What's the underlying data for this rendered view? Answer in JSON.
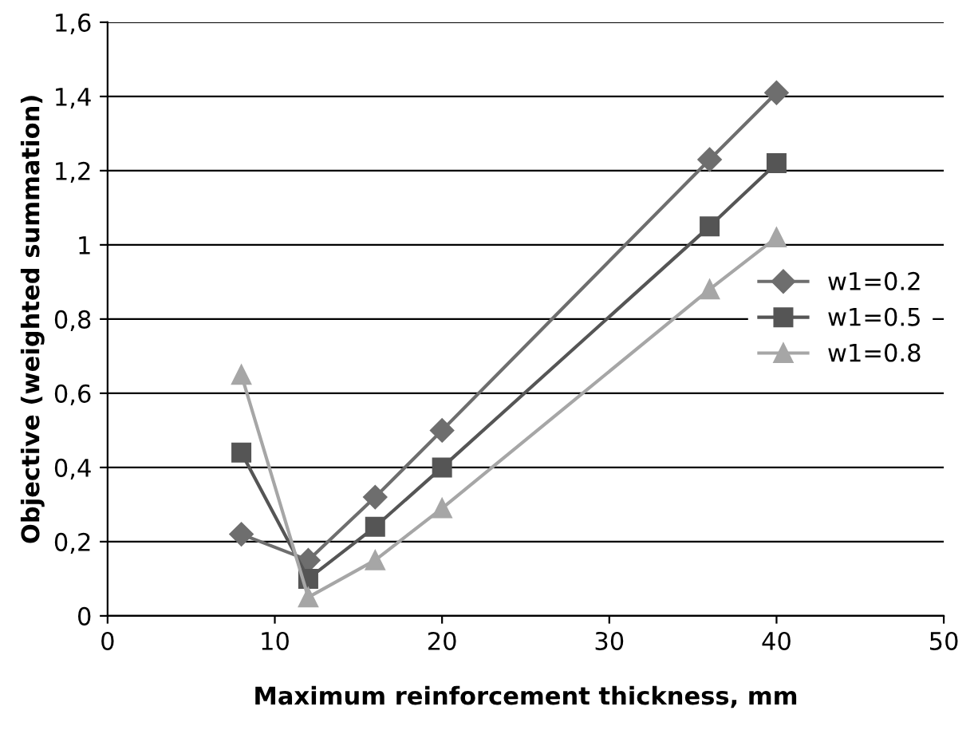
{
  "chart_data": {
    "type": "line",
    "xlabel": "Maximum reinforcement thickness, mm",
    "ylabel": "Objective (weighted summation)",
    "x": [
      8,
      12,
      16,
      20,
      36,
      40
    ],
    "series": [
      {
        "name": "w1=0.2",
        "color": "#6e6e6e",
        "marker": "diamond",
        "values": [
          0.22,
          0.15,
          0.32,
          0.5,
          1.23,
          1.41
        ]
      },
      {
        "name": "w1=0.5",
        "color": "#555555",
        "marker": "square",
        "values": [
          0.44,
          0.1,
          0.24,
          0.4,
          1.05,
          1.22
        ]
      },
      {
        "name": "w1=0.8",
        "color": "#a6a6a6",
        "marker": "triangle",
        "values": [
          0.65,
          0.05,
          0.15,
          0.29,
          0.88,
          1.02
        ]
      }
    ],
    "xlim": [
      0,
      50
    ],
    "xticks": [
      0,
      10,
      20,
      30,
      40,
      50
    ],
    "ylim": [
      0,
      1.6
    ],
    "yticks": [
      0,
      {
        "value": 0.2,
        "label": "0,2"
      },
      {
        "value": 0.4,
        "label": "0,4"
      },
      {
        "value": 0.6,
        "label": "0,6"
      },
      {
        "value": 0.8,
        "label": "0,8"
      },
      1,
      {
        "value": 1.2,
        "label": "1,2"
      },
      {
        "value": 1.4,
        "label": "1,4"
      },
      {
        "value": 1.6,
        "label": "1,6"
      }
    ],
    "grid": "y",
    "legend": "right"
  }
}
